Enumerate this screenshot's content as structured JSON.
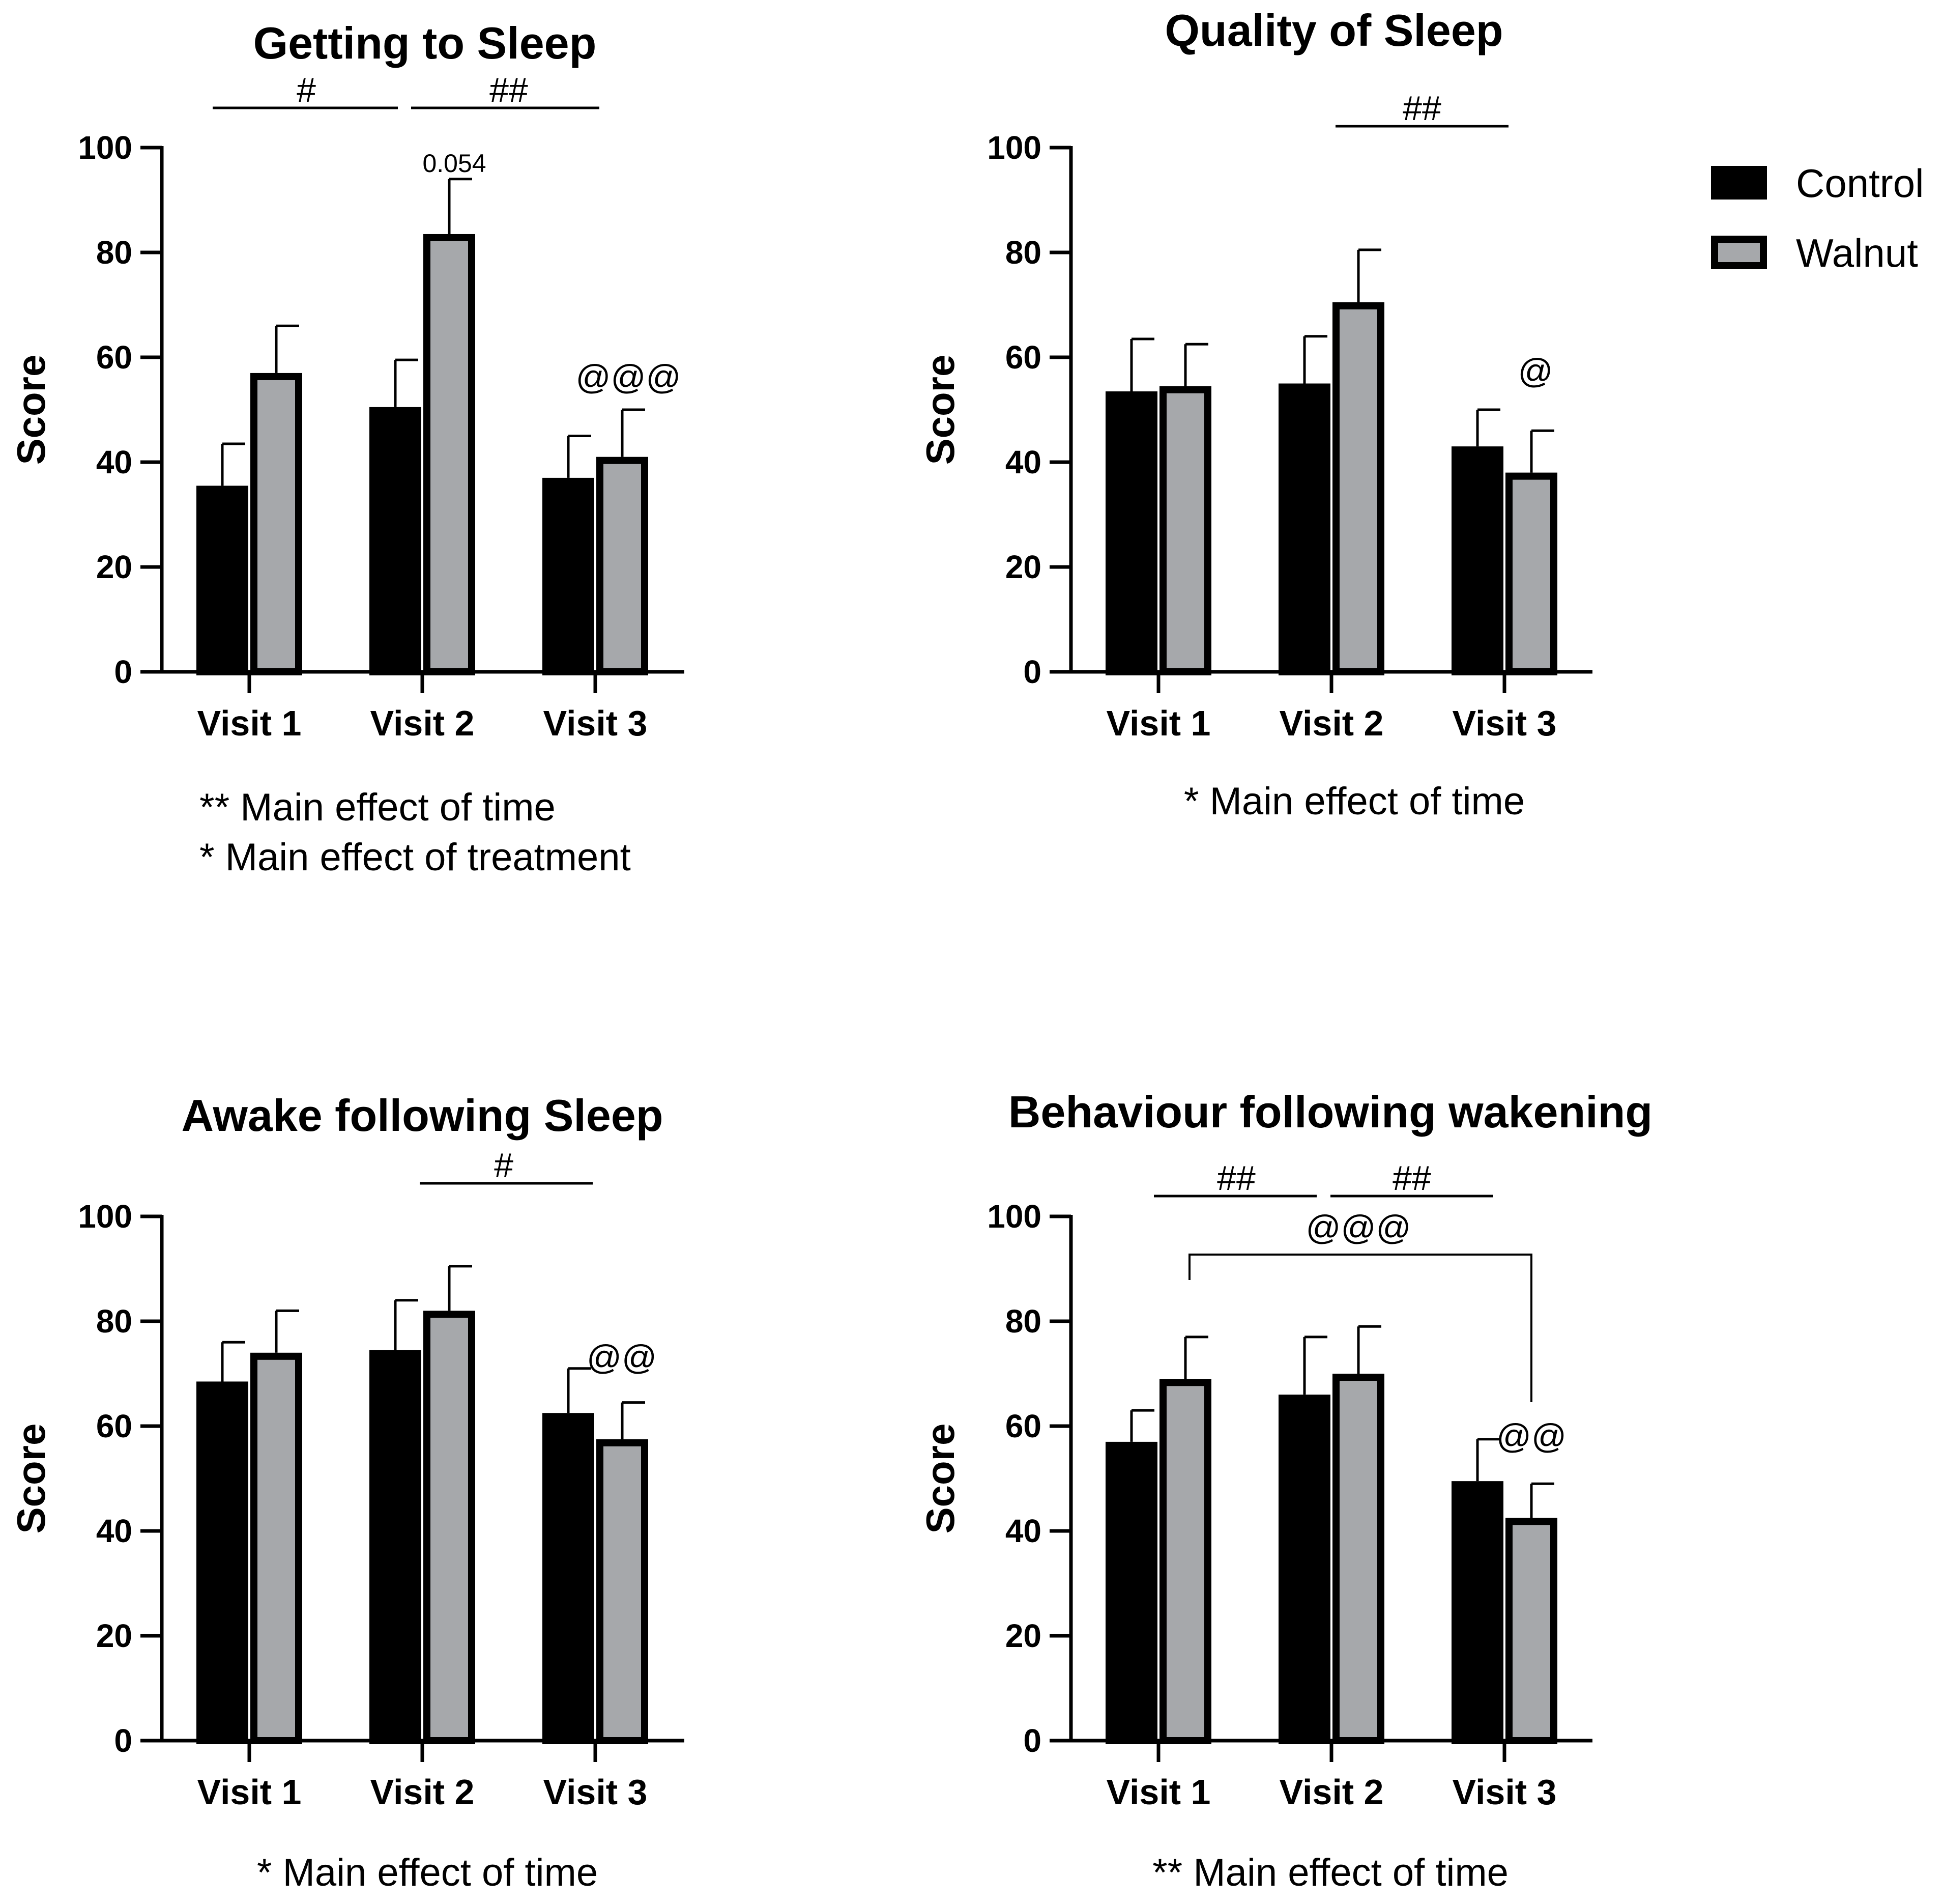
{
  "colors": {
    "control": "#000000",
    "walnut": "#a6a8ab",
    "outline": "#000000"
  },
  "legend": {
    "entries": [
      {
        "name": "Control",
        "color": "#000000"
      },
      {
        "name": "Walnut",
        "color": "#a6a8ab"
      }
    ]
  },
  "chart_data": [
    {
      "type": "bar",
      "title": "Getting to Sleep",
      "ylabel": "Score",
      "xlabel": "",
      "ylim": [
        0,
        100
      ],
      "yticks": [
        "0",
        "20",
        "40",
        "60",
        "80",
        "100"
      ],
      "categories": [
        "Visit 1",
        "Visit 2",
        "Visit 3"
      ],
      "series": [
        {
          "name": "Control",
          "values": [
            35.5,
            50.5,
            37
          ],
          "errors": [
            8,
            9,
            8
          ]
        },
        {
          "name": "Walnut",
          "values": [
            57,
            83.5,
            41
          ],
          "errors": [
            9,
            10.5,
            9
          ]
        }
      ],
      "annotations": [
        "#",
        "##",
        "0.054",
        "@@@"
      ],
      "notes": [
        "** Main effect of time",
        "* Main effect of treatment"
      ]
    },
    {
      "type": "bar",
      "title": "Quality of Sleep",
      "ylabel": "Score",
      "xlabel": "",
      "ylim": [
        0,
        100
      ],
      "yticks": [
        "0",
        "20",
        "40",
        "60",
        "80",
        "100"
      ],
      "categories": [
        "Visit 1",
        "Visit 2",
        "Visit 3"
      ],
      "series": [
        {
          "name": "Control",
          "values": [
            53.5,
            55,
            43
          ],
          "errors": [
            10,
            9,
            7
          ]
        },
        {
          "name": "Walnut",
          "values": [
            54.5,
            70.5,
            38
          ],
          "errors": [
            8,
            10,
            8
          ]
        }
      ],
      "annotations": [
        "##",
        "@"
      ],
      "notes": [
        "* Main effect of time"
      ]
    },
    {
      "type": "bar",
      "title": "Awake following Sleep",
      "ylabel": "Score",
      "xlabel": "",
      "ylim": [
        0,
        100
      ],
      "yticks": [
        "0",
        "20",
        "40",
        "60",
        "80",
        "100"
      ],
      "categories": [
        "Visit 1",
        "Visit 2",
        "Visit 3"
      ],
      "series": [
        {
          "name": "Control",
          "values": [
            68.5,
            74.5,
            62.5
          ],
          "errors": [
            7.5,
            9.5,
            8.5
          ]
        },
        {
          "name": "Walnut",
          "values": [
            74,
            82,
            57.5
          ],
          "errors": [
            8,
            8.5,
            7
          ]
        }
      ],
      "annotations": [
        "#",
        "@@"
      ],
      "notes": [
        "* Main effect of time"
      ]
    },
    {
      "type": "bar",
      "title": "Behaviour following wakening",
      "ylabel": "Score",
      "xlabel": "",
      "ylim": [
        0,
        100
      ],
      "yticks": [
        "0",
        "20",
        "40",
        "60",
        "80",
        "100"
      ],
      "categories": [
        "Visit 1",
        "Visit 2",
        "Visit 3"
      ],
      "series": [
        {
          "name": "Control",
          "values": [
            57,
            66,
            49.5
          ],
          "errors": [
            6,
            11,
            8
          ]
        },
        {
          "name": "Walnut",
          "values": [
            69,
            70,
            42.5
          ],
          "errors": [
            8,
            9,
            6.5
          ]
        }
      ],
      "annotations": [
        "##",
        "##",
        "@@@",
        "@@"
      ],
      "notes": [
        "** Main effect of time"
      ]
    }
  ]
}
